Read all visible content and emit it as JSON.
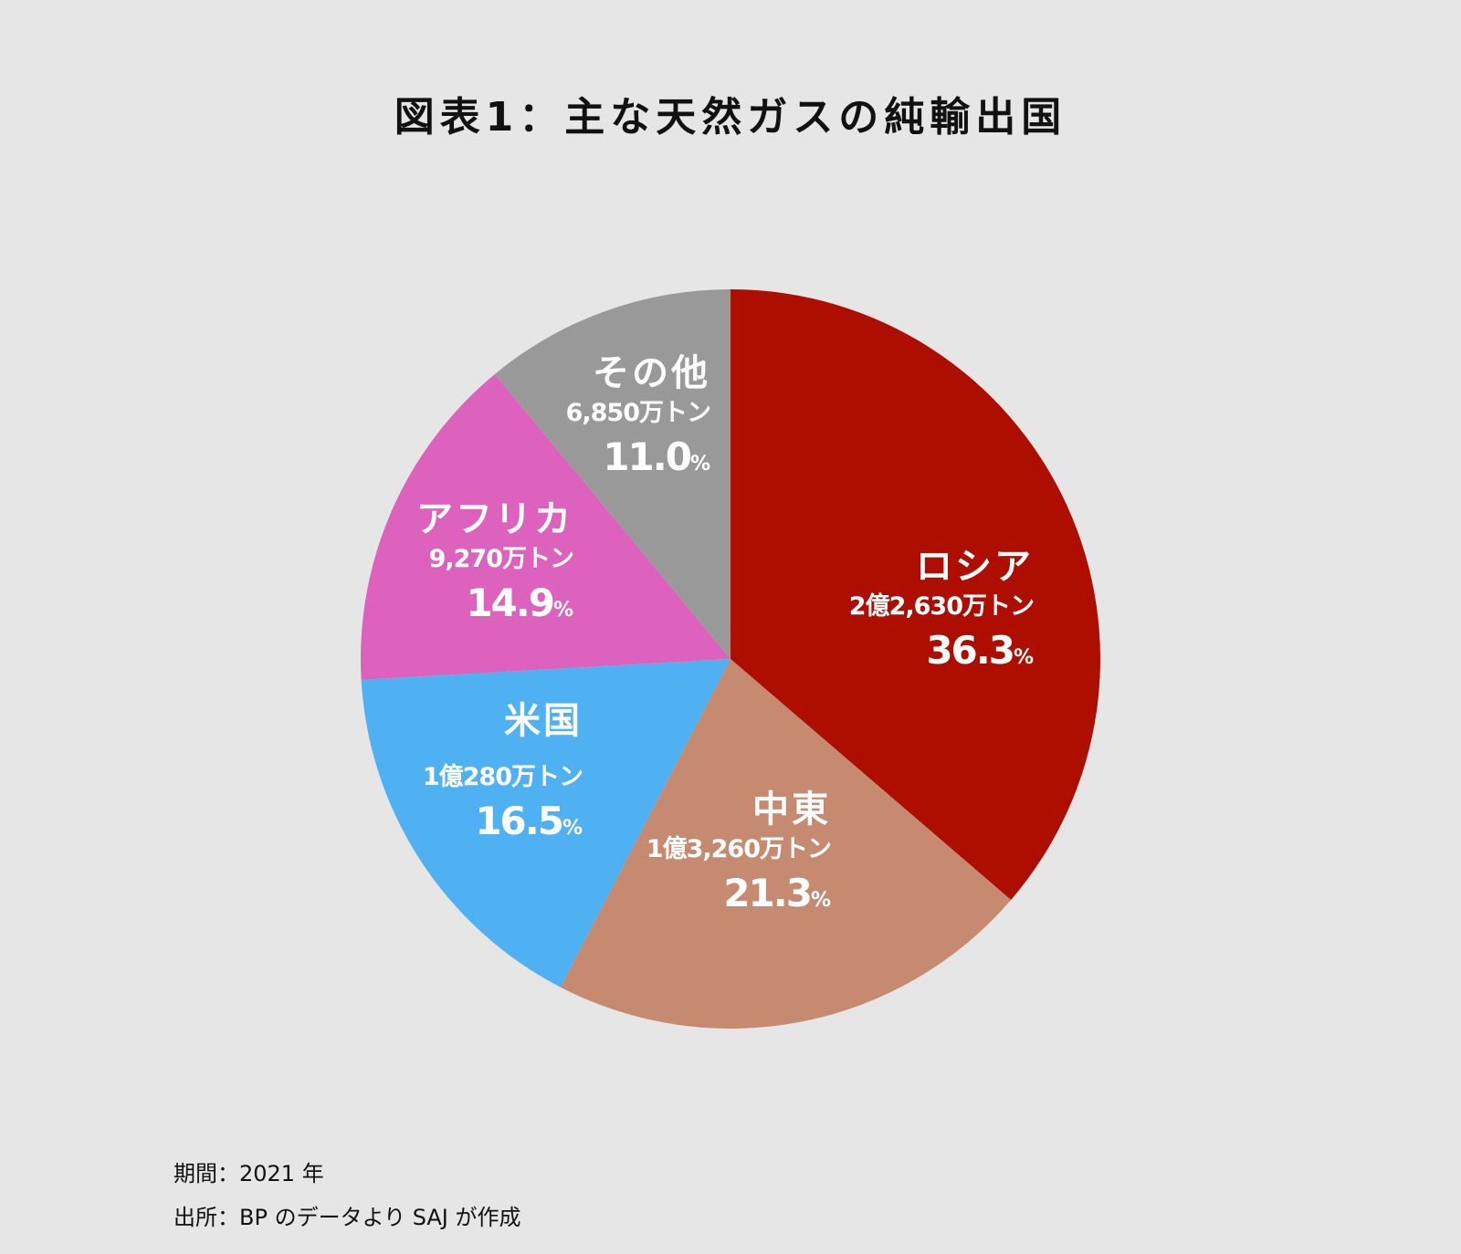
{
  "title": "図表1：主な天然ガスの純輸出国",
  "chart_data": {
    "type": "pie",
    "title": "図表1：主な天然ガスの純輸出国",
    "slices": [
      {
        "name": "ロシア",
        "amount": "2億2,630万トン",
        "value": 36.3,
        "pct_label": "36.3",
        "unit": "%",
        "color": "#ad0e00"
      },
      {
        "name": "中東",
        "amount": "1億3,260万トン",
        "value": 21.3,
        "pct_label": "21.3",
        "unit": "%",
        "color": "#c58a6f"
      },
      {
        "name": "米国",
        "amount": "1億280万トン",
        "value": 16.5,
        "pct_label": "16.5",
        "unit": "%",
        "color": "#4fb1f2"
      },
      {
        "name": "アフリカ",
        "amount": "9,270万トン",
        "value": 14.9,
        "pct_label": "14.9",
        "unit": "%",
        "color": "#dd62bd"
      },
      {
        "name": "その他",
        "amount": "6,850万トン",
        "value": 11.0,
        "pct_label": "11.0",
        "unit": "%",
        "color": "#999999"
      }
    ]
  },
  "footnotes": {
    "period": "期間：2021 年",
    "source": "出所：BP のデータより SAJ が作成"
  }
}
